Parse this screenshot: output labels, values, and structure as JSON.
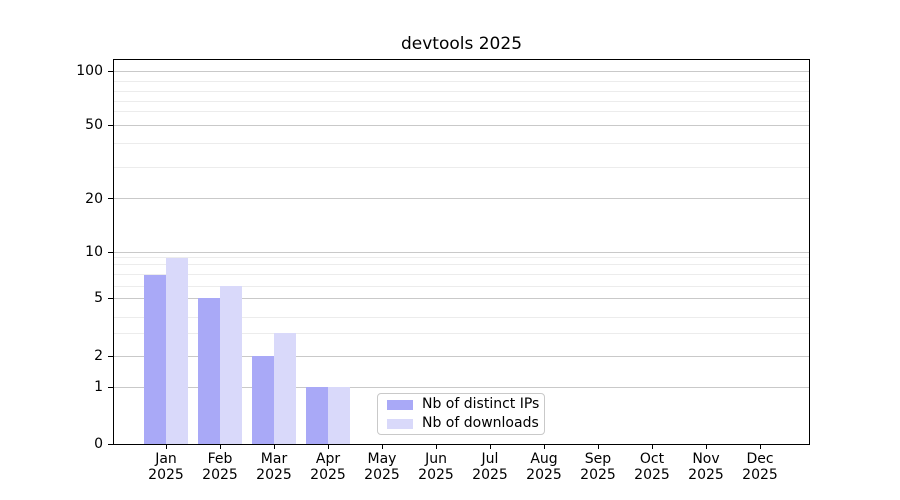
{
  "chart_data": {
    "type": "bar",
    "title": "devtools 2025",
    "categories": [
      "Jan 2025",
      "Feb 2025",
      "Mar 2025",
      "Apr 2025",
      "May 2025",
      "Jun 2025",
      "Jul 2025",
      "Aug 2025",
      "Sep 2025",
      "Oct 2025",
      "Nov 2025",
      "Dec 2025"
    ],
    "series": [
      {
        "name": "Nb of distinct IPs",
        "color": "#a9a9f7",
        "values": [
          7,
          5,
          2,
          1,
          0,
          0,
          0,
          0,
          0,
          0,
          0,
          0
        ]
      },
      {
        "name": "Nb of downloads",
        "color": "#d9d9fa",
        "values": [
          9,
          6,
          3,
          1,
          0,
          0,
          0,
          0,
          0,
          0,
          0,
          0
        ]
      }
    ],
    "xlabel": "",
    "ylabel": "",
    "y_axis": {
      "ticks": [
        0,
        1,
        2,
        5,
        10,
        20,
        50,
        100
      ],
      "minor_gridlines": [
        3,
        4,
        6,
        7,
        8,
        9,
        30,
        40,
        60,
        70,
        80,
        90
      ],
      "scale": "log-like (linear below 1)",
      "ylim": [
        0,
        110
      ]
    },
    "grid": "horizontal",
    "legend_position": "lower center inside plot",
    "colors": {
      "major_grid": "#c9c9c9",
      "minor_grid": "#ececec",
      "axis": "#000000",
      "background": "#ffffff"
    }
  }
}
